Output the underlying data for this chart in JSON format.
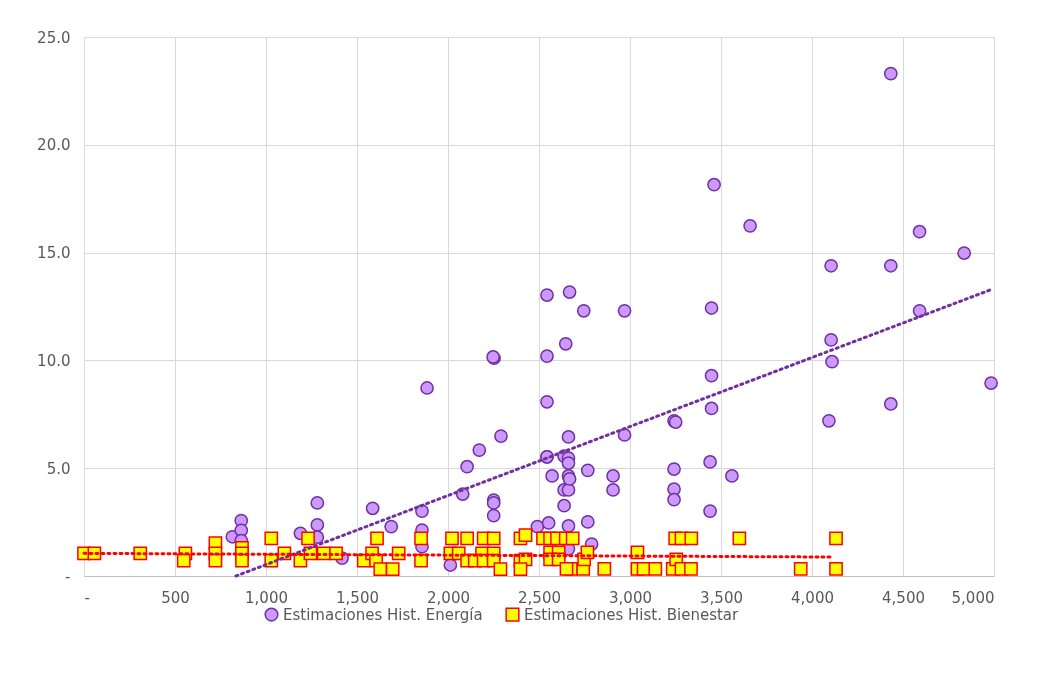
{
  "chart_data": {
    "type": "scatter",
    "legend": "bottom",
    "grid": true,
    "xlim": [
      0,
      5000
    ],
    "xticks": [
      {
        "value": 0,
        "label": "-"
      },
      500,
      {
        "value": 1000,
        "label": "1,000"
      },
      {
        "value": 1500,
        "label": "1,500"
      },
      {
        "value": 2000,
        "label": "2,000"
      },
      {
        "value": 2500,
        "label": "2,500"
      },
      {
        "value": 3000,
        "label": "3,000"
      },
      {
        "value": 3500,
        "label": "3,500"
      },
      {
        "value": 4000,
        "label": "4,000"
      },
      {
        "value": 4500,
        "label": "4,500"
      },
      {
        "value": 5000,
        "label": "5,000"
      }
    ],
    "ylim": [
      0,
      25
    ],
    "yticks": [
      {
        "value": 0,
        "label": "-"
      },
      {
        "value": 5,
        "label": "5.0"
      },
      {
        "value": 10,
        "label": "10.0"
      },
      {
        "value": 15,
        "label": "15.0"
      },
      {
        "value": 20,
        "label": "20.0"
      },
      {
        "value": 25,
        "label": "25.0"
      }
    ],
    "series": [
      {
        "name": "Estimaciones Hist. Energía",
        "marker": "circle",
        "color": "#cc99ff",
        "x": [
          815,
          864,
          864,
          864,
          1189,
          1282,
          1282,
          1282,
          1418,
          1586,
          1688,
          1857,
          1857,
          1857,
          2013,
          2081,
          2105,
          2172,
          2251,
          2251,
          2251,
          2253,
          2291,
          2491,
          2544,
          2544,
          2544,
          2544,
          2553,
          2572,
          2638,
          2638,
          2638,
          2647,
          2662,
          2662,
          2662,
          2662,
          2662,
          2662,
          2662,
          2668,
          2746,
          2768,
          2768,
          2789,
          2907,
          2907,
          2970,
          2970,
          3242,
          3242,
          3242,
          3242,
          3251,
          3440,
          3440,
          3448,
          3448,
          3448,
          3462,
          3560,
          3660,
          4093,
          4105,
          4105,
          4110,
          4433,
          4433,
          4433,
          4591,
          4591,
          4836,
          4984,
          1885,
          2248,
          2544,
          2668
        ],
        "values": [
          1.82,
          2.57,
          2.12,
          1.64,
          1.98,
          3.39,
          2.37,
          1.8,
          0.83,
          3.14,
          2.29,
          3.01,
          2.13,
          1.36,
          0.51,
          3.8,
          5.07,
          5.84,
          3.52,
          3.39,
          2.8,
          10.1,
          6.49,
          2.29,
          5.53,
          10.2,
          8.08,
          13.03,
          2.46,
          4.64,
          5.56,
          3.99,
          3.26,
          10.77,
          5.47,
          5.24,
          4.64,
          3.99,
          2.32,
          1.26,
          6.45,
          4.5,
          12.3,
          4.9,
          2.51,
          1.48,
          4.64,
          3.99,
          12.3,
          6.54,
          4.96,
          4.03,
          3.54,
          7.2,
          7.14,
          5.29,
          3.01,
          12.43,
          9.29,
          7.77,
          18.15,
          4.64,
          16.24,
          7.2,
          10.95,
          14.39,
          9.94,
          23.3,
          7.98,
          14.39,
          15.97,
          12.3,
          14.98,
          8.95,
          8.72,
          10.16,
          5.53,
          13.17
        ]
      },
      {
        "name": "Estimaciones Hist. Bienestar",
        "marker": "square",
        "color": "#ffff00",
        "x": [
          0,
          57,
          309,
          557,
          548,
          722,
          722,
          722,
          868,
          868,
          868,
          1029,
          1029,
          1101,
          1189,
          1231,
          1244,
          1317,
          1385,
          1537,
          1583,
          1610,
          1605,
          1628,
          1696,
          1729,
          1852,
          1852,
          2022,
          2013,
          2059,
          2105,
          2105,
          2196,
          2187,
          2147,
          2196,
          2251,
          2251,
          2251,
          2288,
          2398,
          2426,
          2398,
          2426,
          2398,
          2522,
          2561,
          2599,
          2647,
          2685,
          2561,
          2608,
          2561,
          2608,
          2676,
          2651,
          2743,
          2748,
          2766,
          2859,
          3041,
          3041,
          3075,
          3139,
          3235,
          3254,
          3283,
          3335,
          3248,
          3283,
          3337,
          3601,
          3938,
          4132,
          4132
        ],
        "values": [
          1.05,
          1.05,
          1.05,
          1.05,
          0.71,
          1.52,
          1.05,
          0.71,
          1.3,
          1.05,
          0.71,
          1.75,
          0.71,
          1.05,
          0.71,
          1.75,
          1.05,
          1.05,
          1.05,
          0.71,
          1.05,
          1.75,
          0.71,
          0.32,
          0.32,
          1.05,
          1.75,
          0.71,
          1.75,
          1.05,
          1.05,
          1.75,
          0.71,
          1.75,
          1.05,
          0.71,
          0.71,
          1.75,
          1.05,
          0.71,
          0.32,
          1.75,
          1.9,
          0.71,
          0.77,
          0.32,
          1.75,
          1.75,
          1.75,
          1.75,
          1.75,
          1.1,
          1.1,
          0.77,
          0.77,
          0.33,
          0.33,
          0.33,
          0.77,
          1.1,
          0.33,
          1.1,
          0.33,
          0.33,
          0.33,
          0.33,
          0.77,
          0.33,
          0.33,
          1.75,
          1.75,
          1.75,
          1.75,
          0.33,
          1.75,
          0.33
        ]
      },
      {
        "type": "line",
        "line_style": "dotted",
        "color": "#7030a0",
        "x": [
          835,
          4989
        ],
        "values": [
          0,
          13.3
        ]
      },
      {
        "type": "line",
        "line_style": "dotted",
        "color": "#ff0000",
        "x": [
          0,
          4105
        ],
        "values": [
          1.05,
          0.88
        ]
      }
    ]
  }
}
